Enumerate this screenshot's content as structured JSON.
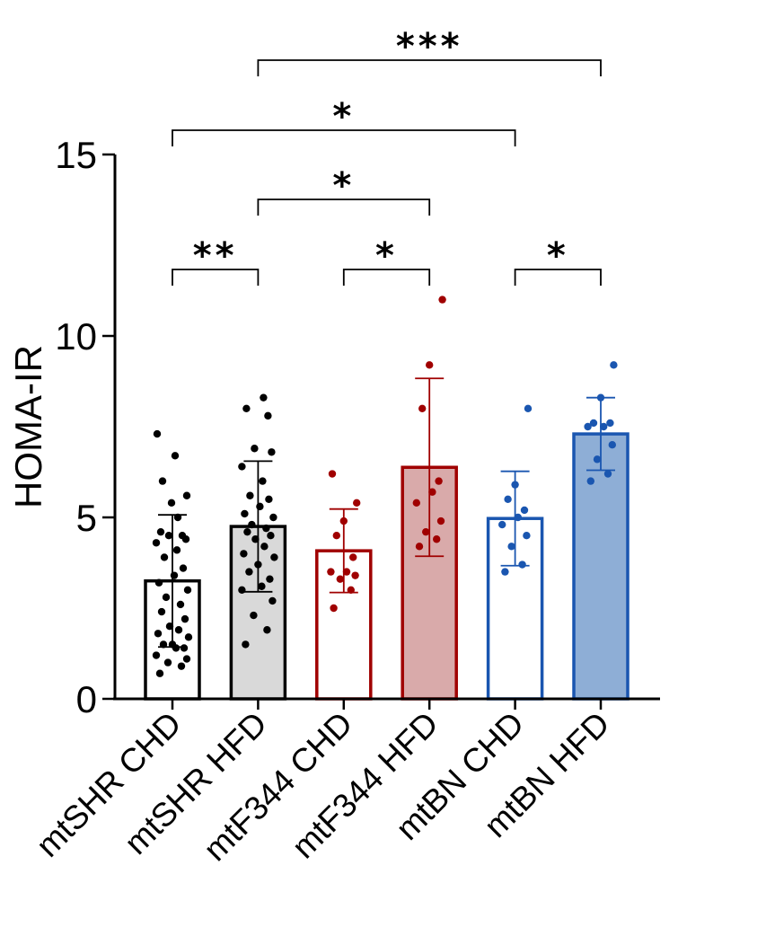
{
  "chart_data": {
    "type": "bar",
    "ylabel": "HOMA-IR",
    "ylim": [
      0,
      15
    ],
    "yticks": [
      0,
      5,
      10,
      15
    ],
    "categories": [
      "mtSHR CHD",
      "mtSHR HFD",
      "mtF344 CHD",
      "mtF344 HFD",
      "mtBN CHD",
      "mtBN HFD"
    ],
    "bars": [
      {
        "category": "mtSHR CHD",
        "mean": 3.25,
        "sd": 1.82,
        "fill": "#ffffff",
        "stroke": "#000000",
        "dot": "#000000",
        "points": [
          0.7,
          0.9,
          1.0,
          1.1,
          1.2,
          1.4,
          1.4,
          1.5,
          1.5,
          1.7,
          1.8,
          1.9,
          2.0,
          2.2,
          2.4,
          2.6,
          2.8,
          3.0,
          3.2,
          3.4,
          3.6,
          3.9,
          4.1,
          4.3,
          4.4,
          4.5,
          4.5,
          4.6,
          5.0,
          5.4,
          5.6,
          6.0,
          6.7,
          7.3
        ]
      },
      {
        "category": "mtSHR HFD",
        "mean": 4.75,
        "sd": 1.8,
        "fill": "#d9d9d9",
        "stroke": "#000000",
        "dot": "#000000",
        "points": [
          1.5,
          1.9,
          2.3,
          2.7,
          3.0,
          3.1,
          3.3,
          3.5,
          3.7,
          3.9,
          4.0,
          4.2,
          4.4,
          4.5,
          4.6,
          4.7,
          4.8,
          5.0,
          5.1,
          5.3,
          5.5,
          5.6,
          6.0,
          6.4,
          6.8,
          6.9,
          7.8,
          8.0,
          8.3
        ]
      },
      {
        "category": "mtF344 CHD",
        "mean": 4.08,
        "sd": 1.15,
        "fill": "#ffffff",
        "stroke": "#a00000",
        "dot": "#a00000",
        "points": [
          2.5,
          3.0,
          3.3,
          3.4,
          3.5,
          3.5,
          3.9,
          4.5,
          4.9,
          5.4,
          6.2
        ]
      },
      {
        "category": "mtF344 HFD",
        "mean": 6.38,
        "sd": 2.45,
        "fill": "#d9aaaa",
        "stroke": "#a00000",
        "dot": "#a00000",
        "points": [
          4.2,
          4.4,
          4.6,
          4.9,
          5.4,
          5.7,
          6.0,
          8.0,
          9.2,
          11.0
        ]
      },
      {
        "category": "mtBN CHD",
        "mean": 4.97,
        "sd": 1.3,
        "fill": "#ffffff",
        "stroke": "#1a56b0",
        "dot": "#1a56b0",
        "points": [
          3.5,
          3.7,
          4.2,
          4.5,
          4.8,
          5.0,
          5.2,
          5.5,
          5.9,
          8.0
        ]
      },
      {
        "category": "mtBN HFD",
        "mean": 7.3,
        "sd": 1.0,
        "fill": "#8eaed6",
        "stroke": "#1a56b0",
        "dot": "#1a56b0",
        "points": [
          6.0,
          6.2,
          6.6,
          7.0,
          7.5,
          7.5,
          7.6,
          7.6,
          8.3,
          9.2
        ]
      }
    ],
    "significance": [
      {
        "from": 0,
        "to": 1,
        "label": "**"
      },
      {
        "from": 2,
        "to": 3,
        "label": "*"
      },
      {
        "from": 4,
        "to": 5,
        "label": "*"
      },
      {
        "from": 1,
        "to": 3,
        "label": "*"
      },
      {
        "from": 0,
        "to": 4,
        "label": "*"
      },
      {
        "from": 1,
        "to": 5,
        "label": "***"
      }
    ],
    "grid": false,
    "legend": "none"
  }
}
